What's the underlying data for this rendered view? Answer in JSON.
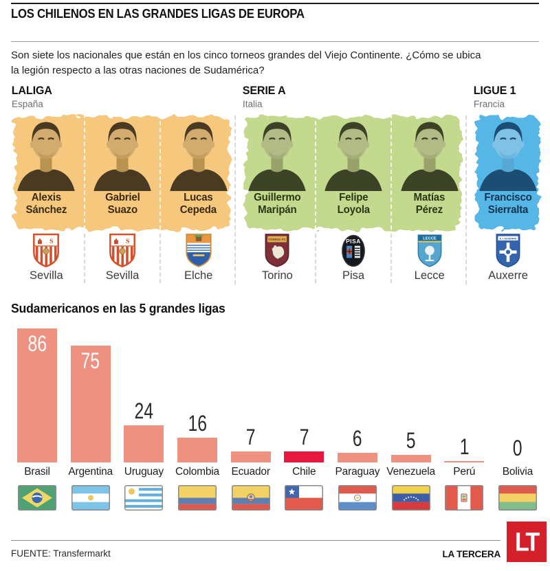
{
  "header": {
    "title": "LOS CHILENOS EN LAS GRANDES LIGAS DE EUROPA",
    "intro_lines": [
      "Son siete los nacionales que están en los cinco torneos grandes del Viejo Continente. ¿Cómo se ubica",
      "la legión respecto a las otras naciones de Sudamérica?"
    ]
  },
  "leagues": [
    {
      "name": "LALIGA",
      "country": "España",
      "blob_color": "#F5C87D",
      "name_color": "#3A2A10",
      "players": [
        {
          "first": "Alexis",
          "last": "Sánchez",
          "club": "Sevilla",
          "crest_icon": "sevilla-crest"
        },
        {
          "first": "Gabriel",
          "last": "Suazo",
          "club": "Sevilla",
          "crest_icon": "sevilla-crest"
        },
        {
          "first": "Lucas",
          "last": "Cepeda",
          "club": "Elche",
          "crest_icon": "elche-crest"
        }
      ]
    },
    {
      "name": "SERIE A",
      "country": "Italia",
      "blob_color": "#C3D98E",
      "name_color": "#2E3512",
      "players": [
        {
          "first": "Guillermo",
          "last": "Maripán",
          "club": "Torino",
          "crest_icon": "torino-crest"
        },
        {
          "first": "Felipe",
          "last": "Loyola",
          "club": "Pisa",
          "crest_icon": "pisa-crest"
        },
        {
          "first": "Matías",
          "last": "Pérez",
          "club": "Lecce",
          "crest_icon": "lecce-crest"
        }
      ]
    },
    {
      "name": "LIGUE 1",
      "country": "Francia",
      "blob_color": "#56B6E5",
      "name_color": "#0E3252",
      "players": [
        {
          "first": "Francisco",
          "last": "Sierralta",
          "club": "Auxerre",
          "crest_icon": "auxerre-crest"
        }
      ]
    }
  ],
  "crest_texts": {
    "torino": "TORINO FC",
    "pisa": "PISA",
    "lecce": "LECCE",
    "auxerre": "A.J AUXERRE"
  },
  "chart_data": {
    "type": "bar",
    "title": "Sudamericanos en las 5 grandes ligas",
    "categories": [
      "Brasil",
      "Argentina",
      "Uruguay",
      "Colombia",
      "Ecuador",
      "Chile",
      "Paraguay",
      "Venezuela",
      "Perú",
      "Bolivia"
    ],
    "values": [
      86,
      75,
      24,
      16,
      7,
      7,
      6,
      5,
      1,
      0
    ],
    "flag_icons": [
      "flag-brasil-icon",
      "flag-argentina-icon",
      "flag-uruguay-icon",
      "flag-colombia-icon",
      "flag-ecuador-icon",
      "flag-chile-icon",
      "flag-paraguay-icon",
      "flag-venezuela-icon",
      "flag-peru-icon",
      "flag-bolivia-icon"
    ],
    "bar_color": "#EF9180",
    "highlight_category": "Chile",
    "highlight_color": "#E8173E",
    "xlabel": "",
    "ylabel": "",
    "ylim": [
      0,
      86
    ],
    "grid": false,
    "legend": false,
    "value_labels": true
  },
  "footer": {
    "source_label": "FUENTE: Transfermarkt",
    "brand": "LA TERCERA",
    "logo_text": "LT",
    "logo_color": "#D3202A"
  }
}
